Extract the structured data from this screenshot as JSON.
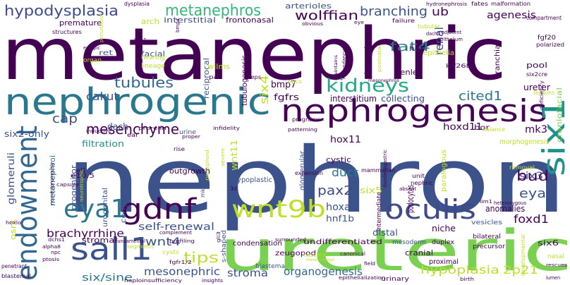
{
  "words": [
    {
      "text": "metanephric",
      "color": "#440154"
    },
    {
      "text": "nephron",
      "color": "#3b528b"
    },
    {
      "text": "ureteric",
      "color": "#7ad151"
    },
    {
      "text": "nephrogenic",
      "color": "#2a788e"
    },
    {
      "text": "nephrogenesis",
      "color": "#440154"
    },
    {
      "text": "endowment",
      "color": "#31688e"
    },
    {
      "text": "six1",
      "color": "#21918c"
    },
    {
      "text": "sall1",
      "color": "#3b528b"
    },
    {
      "text": "gdnf",
      "color": "#440154"
    },
    {
      "text": "oculis",
      "color": "#3e4a89"
    },
    {
      "text": "wnt9b",
      "color": "#bddf26"
    },
    {
      "text": "eya1",
      "color": "#2a788e"
    },
    {
      "text": "kidneys",
      "color": "#22a884"
    },
    {
      "text": "metanephros",
      "color": "#35b779"
    },
    {
      "text": "hypodysplasia",
      "color": "#3e4a89"
    },
    {
      "text": "mesenchyme",
      "color": "#440154"
    },
    {
      "text": "tubules",
      "color": "#31688e"
    },
    {
      "text": "branching",
      "color": "#3b528b"
    },
    {
      "text": "wolffian",
      "color": "#440154"
    },
    {
      "text": "fat4",
      "color": "#2a788e"
    },
    {
      "text": "cited1",
      "color": "#2a788e"
    },
    {
      "text": "renal",
      "color": "#3e4a89"
    },
    {
      "text": "agenesis",
      "color": "#440154"
    },
    {
      "text": "ub",
      "color": "#440154"
    },
    {
      "text": "bud",
      "color": "#440154"
    },
    {
      "text": "cap",
      "color": "#3b528b"
    },
    {
      "text": "cakut",
      "color": "#3b528b"
    },
    {
      "text": "hypoplasia",
      "color": "#bddf26"
    },
    {
      "text": "2p21",
      "color": "#bddf26"
    },
    {
      "text": "organogenesis",
      "color": "#31688e"
    },
    {
      "text": "stroma",
      "color": "#3b528b"
    },
    {
      "text": "mesonephric",
      "color": "#3b528b"
    },
    {
      "text": "six/sine",
      "color": "#2a788e"
    },
    {
      "text": "brachyrrhine",
      "color": "#440154"
    },
    {
      "text": "wnt4",
      "color": "#3b528b"
    },
    {
      "text": "tips",
      "color": "#bddf26"
    },
    {
      "text": "self-renewal",
      "color": "#3b528b"
    },
    {
      "text": "pax2",
      "color": "#3e4a89"
    },
    {
      "text": "eya",
      "color": "#3b528b"
    },
    {
      "text": "foxd1",
      "color": "#440154"
    },
    {
      "text": "six3",
      "color": "#3e4a89"
    },
    {
      "text": "duct",
      "color": "#2a788e"
    },
    {
      "text": "hox11",
      "color": "#440154"
    },
    {
      "text": "hoxd11",
      "color": "#440154"
    },
    {
      "text": "mk3",
      "color": "#440154"
    },
    {
      "text": "glomeruli",
      "color": "#3b528b"
    },
    {
      "text": "metanephroi",
      "color": "#2a788e"
    },
    {
      "text": "progenitor",
      "color": "#3b528b"
    },
    {
      "text": "dach",
      "color": "#3b528b"
    },
    {
      "text": "wnt11",
      "color": "#bddf26"
    },
    {
      "text": "six4",
      "color": "#bddf26"
    },
    {
      "text": "bmp7",
      "color": "#440154"
    },
    {
      "text": "fgfrs",
      "color": "#440154"
    },
    {
      "text": "tubulogenesis",
      "color": "#440154"
    },
    {
      "text": "interstitium",
      "color": "#440154"
    },
    {
      "text": "collecting",
      "color": "#3b528b"
    },
    {
      "text": "ureter",
      "color": "#440154"
    },
    {
      "text": "glomerular",
      "color": "#3b528b"
    },
    {
      "text": "podocytes",
      "color": "#440154"
    },
    {
      "text": "hoxa2",
      "color": "#3b528b"
    },
    {
      "text": "hnf1b",
      "color": "#3b528b"
    },
    {
      "text": "six5",
      "color": "#bddf26"
    },
    {
      "text": "anomalies",
      "color": "#440154"
    },
    {
      "text": "niche",
      "color": "#440154"
    },
    {
      "text": "distal",
      "color": "#3b528b"
    },
    {
      "text": "stromal",
      "color": "#440154"
    },
    {
      "text": "osr1",
      "color": "#bddf26"
    },
    {
      "text": "six6",
      "color": "#440154"
    },
    {
      "text": "e10.5",
      "color": "#440154"
    },
    {
      "text": "outgrowth",
      "color": "#440154"
    },
    {
      "text": "congenital",
      "color": "#3b528b"
    },
    {
      "text": "urogenital",
      "color": "#3b528b"
    },
    {
      "text": "filtration",
      "color": "#21918c"
    },
    {
      "text": "six2-only",
      "color": "#3b528b"
    },
    {
      "text": "pool",
      "color": "#440154"
    },
    {
      "text": "branchial",
      "color": "#440154"
    },
    {
      "text": "craniofacial",
      "color": "#7ad151"
    },
    {
      "text": "morphogenesis",
      "color": "#bddf26"
    },
    {
      "text": "reciprocal",
      "color": "#3b528b"
    },
    {
      "text": "wilms",
      "color": "#bddf26"
    },
    {
      "text": "frontonasal",
      "color": "#440154"
    },
    {
      "text": "interstitial",
      "color": "#3b528b"
    },
    {
      "text": "arterioles",
      "color": "#3b528b"
    },
    {
      "text": "premature",
      "color": "#440154"
    },
    {
      "text": "arch",
      "color": "#bddf26"
    },
    {
      "text": "facial",
      "color": "#3b528b"
    },
    {
      "text": "ret",
      "color": "#3b528b"
    },
    {
      "text": "henle",
      "color": "#440154"
    },
    {
      "text": "hox",
      "color": "#440154"
    },
    {
      "text": "epithelia",
      "color": "#bddf26"
    },
    {
      "text": "bor",
      "color": "#440154"
    },
    {
      "text": "paralogous",
      "color": "#bddf26"
    },
    {
      "text": "mesoderm",
      "color": "#3b528b"
    },
    {
      "text": "undifferentiated",
      "color": "#440154"
    },
    {
      "text": "condensation",
      "color": "#440154"
    },
    {
      "text": "cystic",
      "color": "#440154"
    },
    {
      "text": "urinary",
      "color": "#440154"
    },
    {
      "text": "proximal",
      "color": "#440154"
    },
    {
      "text": "cranial",
      "color": "#440154"
    },
    {
      "text": "zeugopod",
      "color": "#440154"
    },
    {
      "text": "blastema",
      "color": "#3b528b"
    },
    {
      "text": "s-shaped",
      "color": "#3b528b"
    },
    {
      "text": "fgf20",
      "color": "#440154"
    },
    {
      "text": "polarized",
      "color": "#440154"
    },
    {
      "text": "kif26b",
      "color": "#440154"
    },
    {
      "text": "six2cre",
      "color": "#440154"
    },
    {
      "text": "tendons",
      "color": "#bddf26"
    },
    {
      "text": "hypoplastic",
      "color": "#3b528b"
    },
    {
      "text": "nasal",
      "color": "#bddf26"
    },
    {
      "text": "rescues",
      "color": "#440154"
    },
    {
      "text": "developmental",
      "color": "#bddf26"
    },
    {
      "text": "vesicles",
      "color": "#3b528b"
    },
    {
      "text": "bilateral",
      "color": "#440154"
    },
    {
      "text": "precursor",
      "color": "#440154"
    },
    {
      "text": "intermediate",
      "color": "#440154"
    },
    {
      "text": "duplex",
      "color": "#440154"
    },
    {
      "text": "nephric",
      "color": "#440154"
    },
    {
      "text": "unit",
      "color": "#440154"
    },
    {
      "text": "mammalian",
      "color": "#440154"
    },
    {
      "text": "duodenogastric",
      "color": "#440154"
    },
    {
      "text": "expansion",
      "color": "#440154"
    },
    {
      "text": "programs",
      "color": "#440154"
    },
    {
      "text": "patterning",
      "color": "#440154"
    },
    {
      "text": "infidelity",
      "color": "#440154"
    },
    {
      "text": "urine",
      "color": "#3b528b"
    },
    {
      "text": "proper",
      "color": "#440154"
    },
    {
      "text": "proreiin",
      "color": "#440154"
    },
    {
      "text": "rise",
      "color": "#440154"
    },
    {
      "text": "ear",
      "color": "#440154"
    },
    {
      "text": "wt1",
      "color": "#440154"
    },
    {
      "text": "inductive",
      "color": "#440154"
    },
    {
      "text": "non-autonomously",
      "color": "#440154"
    },
    {
      "text": "capsule",
      "color": "#440154"
    },
    {
      "text": "neurotrophic",
      "color": "#bddf26"
    },
    {
      "text": "hoxlo",
      "color": "#440154"
    },
    {
      "text": "dchs1",
      "color": "#440154"
    },
    {
      "text": "alpha8",
      "color": "#440154"
    },
    {
      "text": "npc",
      "color": "#440154"
    },
    {
      "text": "ptosis",
      "color": "#440154"
    },
    {
      "text": "penetrant",
      "color": "#440154"
    },
    {
      "text": "blastemal",
      "color": "#440154"
    },
    {
      "text": "haploinsufficiency",
      "color": "#440154"
    },
    {
      "text": "insights",
      "color": "#440154"
    },
    {
      "text": "fgfr1/2",
      "color": "#440154"
    },
    {
      "text": "cysts",
      "color": "#bddf26"
    },
    {
      "text": "segments",
      "color": "#bddf26"
    },
    {
      "text": "fundamental",
      "color": "#440154"
    },
    {
      "text": "complement",
      "color": "#440154"
    },
    {
      "text": "profiling",
      "color": "#440154"
    },
    {
      "text": "gli3",
      "color": "#440154"
    },
    {
      "text": "nascent",
      "color": "#bddf26"
    },
    {
      "text": "surrounded",
      "color": "#440154"
    },
    {
      "text": "canonical",
      "color": "#440154"
    },
    {
      "text": "field",
      "color": "#440154"
    },
    {
      "text": "mesenchymal",
      "color": "#bddf26"
    },
    {
      "text": "epithelialization",
      "color": "#440154"
    },
    {
      "text": "birth",
      "color": "#440154"
    },
    {
      "text": "lumen",
      "color": "#440154"
    },
    {
      "text": "absent",
      "color": "#440154"
    },
    {
      "text": "lim1",
      "color": "#440154"
    },
    {
      "text": "heterozygous",
      "color": "#440154"
    },
    {
      "text": "removal",
      "color": "#bddf26"
    },
    {
      "text": "balance",
      "color": "#bddf26"
    },
    {
      "text": "deficiency",
      "color": "#440154"
    },
    {
      "text": "polyploid",
      "color": "#bddf26"
    },
    {
      "text": "mk4",
      "color": "#3b528b"
    },
    {
      "text": "3d",
      "color": "#440154"
    },
    {
      "text": "severe",
      "color": "#bddf26"
    },
    {
      "text": "pal",
      "color": "#440154"
    },
    {
      "text": "steps",
      "color": "#440154"
    },
    {
      "text": "npcs",
      "color": "#bddf26"
    },
    {
      "text": "lineage",
      "color": "#bddf26"
    },
    {
      "text": "hearing",
      "color": "#bddf26"
    },
    {
      "text": "organ",
      "color": "#bddf26"
    },
    {
      "text": "kim1",
      "color": "#440154"
    },
    {
      "text": "ectopic",
      "color": "#440154"
    },
    {
      "text": "perturbation",
      "color": "#bddf26"
    },
    {
      "text": "structures",
      "color": "#440154"
    },
    {
      "text": "dysplasia",
      "color": "#440154"
    },
    {
      "text": "hydronephrosis",
      "color": "#440154"
    },
    {
      "text": "fates",
      "color": "#440154"
    },
    {
      "text": "malformation",
      "color": "#440154"
    },
    {
      "text": "compartment",
      "color": "#440154"
    },
    {
      "text": "failure",
      "color": "#440154"
    },
    {
      "text": "tubular",
      "color": "#bddf26"
    },
    {
      "text": "adjacent",
      "color": "#440154"
    },
    {
      "text": "dach1",
      "color": "#440154"
    },
    {
      "text": "eye",
      "color": "#440154"
    },
    {
      "text": "obvious",
      "color": "#440154"
    },
    {
      "text": "bmp4",
      "color": "#440154"
    },
    {
      "text": "dysgenesis",
      "color": "#440154"
    },
    {
      "text": "postnatal",
      "color": "#bddf26"
    },
    {
      "text": "redundancy",
      "color": "#440154"
    },
    {
      "text": "maintains",
      "color": "#440154"
    },
    {
      "text": "epithelium",
      "color": "#440154"
    },
    {
      "text": "mesonephros",
      "color": "#440154"
    }
  ]
}
